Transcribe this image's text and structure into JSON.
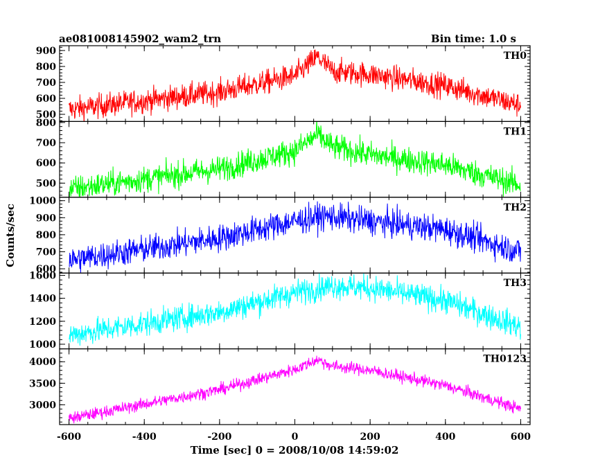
{
  "header": {
    "title": "ae081008145902_wam2_trn",
    "bin_time": "Bin time: 1.0 s"
  },
  "chart_data": {
    "type": "line",
    "x": {
      "label": "Time [sec] 0 = 2008/10/08 14:59:02",
      "lim": [
        -625,
        625
      ],
      "ticks": [
        -600,
        -400,
        -200,
        0,
        200,
        400,
        600
      ]
    },
    "y_label": "Counts/sec",
    "panels": [
      {
        "name": "TH0",
        "color": "#ff0000",
        "ylim": [
          455,
          930
        ],
        "ticks": [
          500,
          600,
          700,
          800,
          900
        ],
        "trend": [
          [
            -600,
            530
          ],
          [
            -200,
            640
          ],
          [
            0,
            740
          ],
          [
            60,
            860
          ],
          [
            100,
            770
          ],
          [
            200,
            750
          ],
          [
            400,
            680
          ],
          [
            600,
            555
          ]
        ],
        "noise": 38
      },
      {
        "name": "TH1",
        "color": "#00ff00",
        "ylim": [
          430,
          805
        ],
        "ticks": [
          500,
          600,
          700,
          800
        ],
        "trend": [
          [
            -600,
            470
          ],
          [
            -200,
            570
          ],
          [
            0,
            660
          ],
          [
            60,
            740
          ],
          [
            100,
            680
          ],
          [
            200,
            640
          ],
          [
            400,
            590
          ],
          [
            600,
            490
          ]
        ],
        "noise": 32
      },
      {
        "name": "TH2",
        "color": "#0000ff",
        "ylim": [
          575,
          1020
        ],
        "ticks": [
          600,
          700,
          800,
          900,
          1000
        ],
        "trend": [
          [
            -600,
            650
          ],
          [
            -200,
            780
          ],
          [
            0,
            880
          ],
          [
            80,
            910
          ],
          [
            200,
            880
          ],
          [
            400,
            830
          ],
          [
            600,
            700
          ]
        ],
        "noise": 40
      },
      {
        "name": "TH3",
        "color": "#00ffff",
        "ylim": [
          960,
          1620
        ],
        "ticks": [
          1000,
          1200,
          1400,
          1600
        ],
        "trend": [
          [
            -600,
            1080
          ],
          [
            -200,
            1280
          ],
          [
            0,
            1450
          ],
          [
            100,
            1510
          ],
          [
            200,
            1490
          ],
          [
            400,
            1380
          ],
          [
            600,
            1150
          ]
        ],
        "noise": 55
      },
      {
        "name": "TH0123",
        "color": "#ff00ff",
        "ylim": [
          2540,
          4300
        ],
        "ticks": [
          3000,
          3500,
          4000
        ],
        "trend": [
          [
            -600,
            2680
          ],
          [
            -200,
            3350
          ],
          [
            0,
            3820
          ],
          [
            60,
            4050
          ],
          [
            100,
            3900
          ],
          [
            200,
            3800
          ],
          [
            400,
            3450
          ],
          [
            600,
            2900
          ]
        ],
        "noise": 70
      }
    ]
  }
}
